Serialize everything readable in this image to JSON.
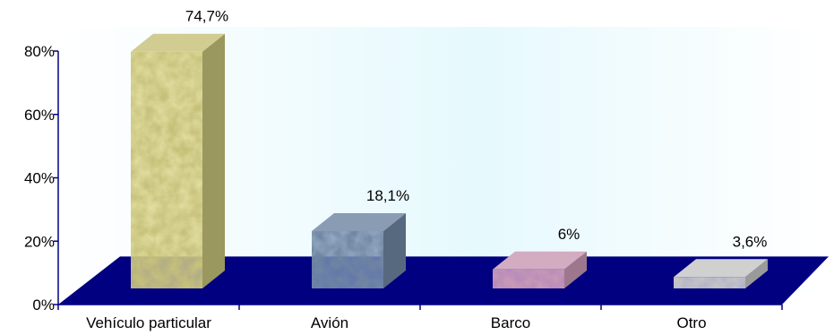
{
  "chart_data": {
    "type": "bar",
    "title": "",
    "xlabel": "",
    "ylabel": "",
    "categories": [
      "Vehículo particular",
      "Avión",
      "Barco",
      "Otro"
    ],
    "values": [
      74.7,
      18.1,
      6,
      3.6
    ],
    "data_labels": [
      "74,7%",
      "18,1%",
      "6%",
      "3,6%"
    ],
    "ylim": [
      0,
      80
    ],
    "yticks": [
      0,
      20,
      40,
      60,
      80
    ],
    "ytick_labels": [
      "0%",
      "20%",
      "40%",
      "60%",
      "80%"
    ],
    "grid": false,
    "legend": "none",
    "style": "3d-columns"
  },
  "colors": {
    "floor": "#000080",
    "axis": "#000080",
    "background_fade": "#e6f9fd",
    "bars": [
      "#c6c17a",
      "#6f86a3",
      "#c99ab5",
      "#c6c6c6"
    ]
  }
}
